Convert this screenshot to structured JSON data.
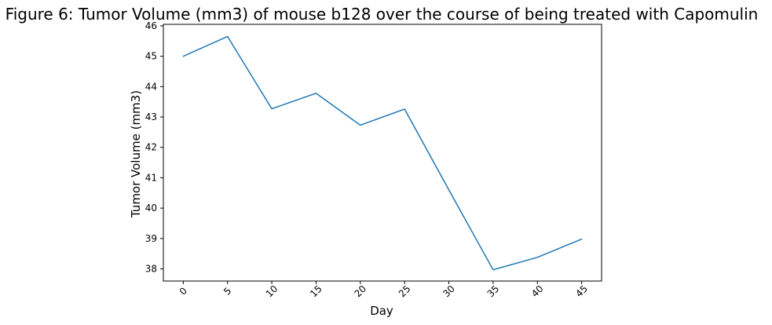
{
  "chart_data": {
    "type": "line",
    "title": "Figure 6: Tumor Volume (mm3) of mouse b128 over the course of being treated with Capomulin",
    "xlabel": "Day",
    "ylabel": "Tumor Volume (mm3)",
    "x": [
      0,
      5,
      10,
      15,
      20,
      25,
      30,
      35,
      40,
      45
    ],
    "series": [
      {
        "values": [
          45.0,
          45.65,
          43.27,
          43.78,
          42.73,
          43.26,
          40.6,
          37.97,
          38.38,
          38.98
        ],
        "color": "#1f77b4"
      }
    ],
    "xticks": [
      0,
      5,
      10,
      15,
      20,
      25,
      30,
      35,
      40,
      45
    ],
    "xtick_labels": [
      "0",
      "5",
      "10",
      "15",
      "20",
      "25",
      "30",
      "35",
      "40",
      "45"
    ],
    "xtick_rotation": 45,
    "yticks": [
      38,
      39,
      40,
      41,
      42,
      43,
      44,
      45,
      46
    ],
    "ytick_labels": [
      "38",
      "39",
      "40",
      "41",
      "42",
      "43",
      "44",
      "45",
      "46"
    ],
    "xlim": [
      -2.25,
      47.25
    ],
    "ylim": [
      37.6,
      46.05
    ],
    "grid": false,
    "legend": false
  }
}
